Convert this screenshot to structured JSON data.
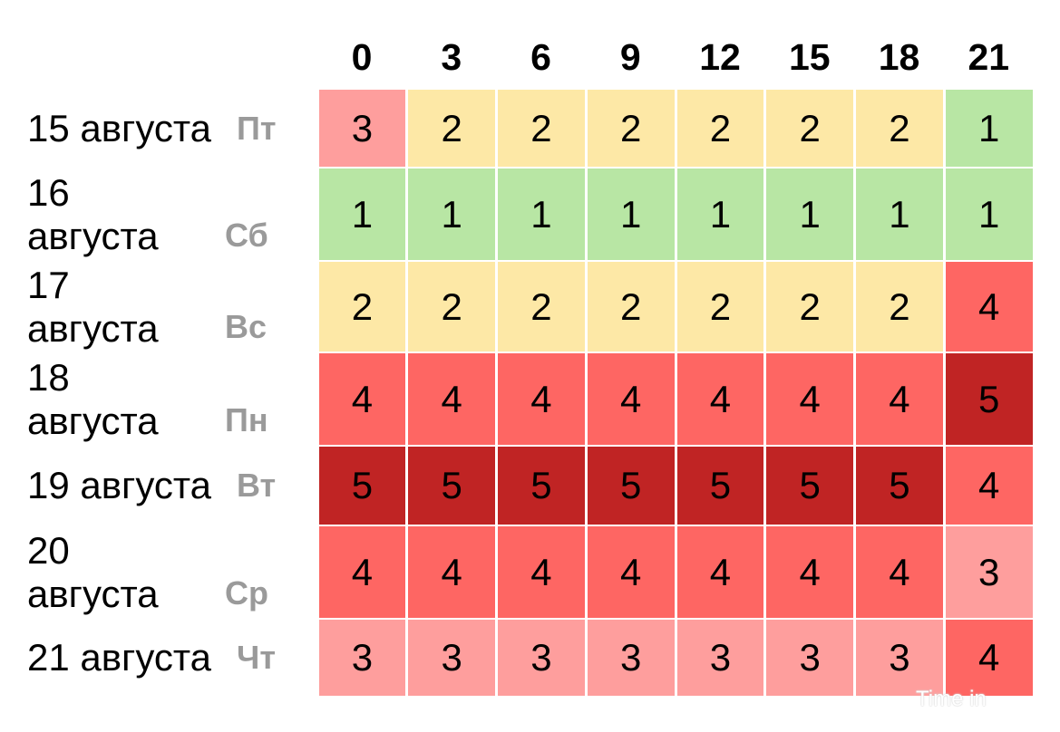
{
  "chart_data": {
    "type": "heatmap",
    "x": [
      "0",
      "3",
      "6",
      "9",
      "12",
      "15",
      "18",
      "21"
    ],
    "rows": [
      {
        "date": "15 августа",
        "weekday": "Пт",
        "values": [
          3,
          2,
          2,
          2,
          2,
          2,
          2,
          1
        ]
      },
      {
        "date": "16 августа",
        "weekday": "Сб",
        "values": [
          1,
          1,
          1,
          1,
          1,
          1,
          1,
          1
        ]
      },
      {
        "date": "17 августа",
        "weekday": "Вс",
        "values": [
          2,
          2,
          2,
          2,
          2,
          2,
          2,
          4
        ]
      },
      {
        "date": "18 августа",
        "weekday": "Пн",
        "values": [
          4,
          4,
          4,
          4,
          4,
          4,
          4,
          5
        ]
      },
      {
        "date": "19 августа",
        "weekday": "Вт",
        "values": [
          5,
          5,
          5,
          5,
          5,
          5,
          5,
          4
        ]
      },
      {
        "date": "20 августа",
        "weekday": "Ср",
        "values": [
          4,
          4,
          4,
          4,
          4,
          4,
          4,
          3
        ]
      },
      {
        "date": "21 августа",
        "weekday": "Чт",
        "values": [
          3,
          3,
          3,
          3,
          3,
          3,
          3,
          4
        ]
      }
    ],
    "value_colors": {
      "1": "#b8e6a4",
      "2": "#fde8a6",
      "3": "#fe9e9d",
      "4": "#fe6663",
      "5": "#c02424"
    }
  },
  "watermark": "Time in"
}
